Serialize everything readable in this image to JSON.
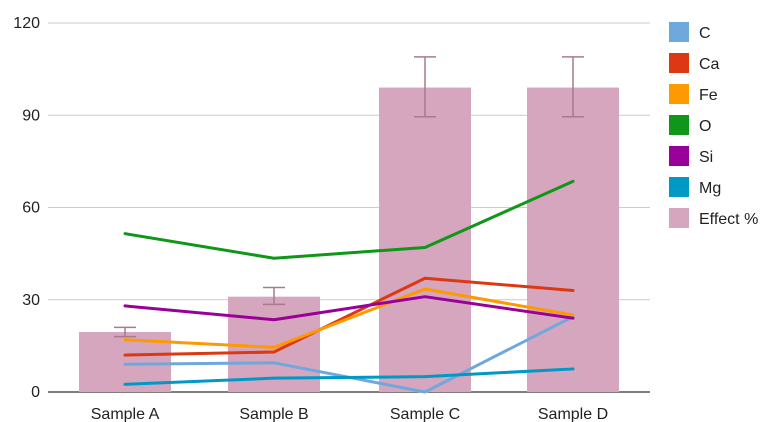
{
  "chart_data": {
    "type": "bar",
    "categories": [
      "Sample A",
      "Sample B",
      "Sample C",
      "Sample D"
    ],
    "ylim": [
      0,
      120
    ],
    "yticks": [
      0,
      30,
      60,
      90,
      120
    ],
    "grid": true,
    "legend_position": "right",
    "bars": {
      "name": "Effect %",
      "color": "#d5a6bd",
      "values": [
        19.5,
        31,
        99,
        99
      ],
      "error": [
        [
          18,
          21
        ],
        [
          28.5,
          34
        ],
        [
          89.5,
          109
        ],
        [
          89.5,
          109
        ]
      ],
      "error_color": "#a77b8e"
    },
    "series": [
      {
        "name": "C",
        "color": "#6fa8dc",
        "values": [
          9,
          9.5,
          0,
          24.5
        ]
      },
      {
        "name": "Ca",
        "color": "#dc3912",
        "values": [
          12,
          13,
          37,
          33
        ]
      },
      {
        "name": "Fe",
        "color": "#ff9900",
        "values": [
          17,
          14.5,
          33.5,
          25
        ]
      },
      {
        "name": "O",
        "color": "#109618",
        "values": [
          51.5,
          43.5,
          47,
          68.5
        ]
      },
      {
        "name": "Si",
        "color": "#990099",
        "values": [
          28,
          23.5,
          31,
          24
        ]
      },
      {
        "name": "Mg",
        "color": "#0099c6",
        "values": [
          2.5,
          4.5,
          5,
          7.5
        ]
      }
    ],
    "legend": [
      "C",
      "Ca",
      "Fe",
      "O",
      "Si",
      "Mg",
      "Effect %"
    ]
  }
}
